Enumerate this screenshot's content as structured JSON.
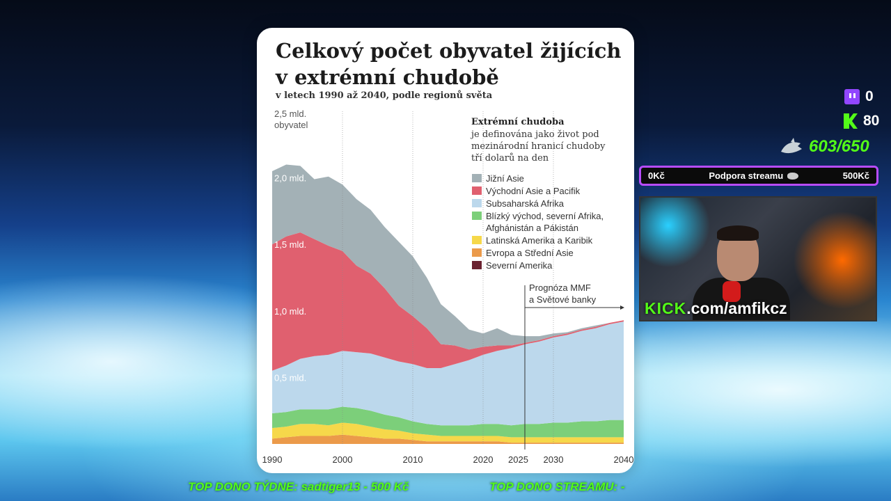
{
  "chart": {
    "title": "Celkový počet obyvatel žijících\nv extrémní chudobě",
    "subtitle": "v letech 1990 až 2040, podle regionů světa",
    "y_unit_line1": "2,5 mld.",
    "y_unit_line2": "obyvatel",
    "y_labels": [
      "2,0 mld.",
      "1,5 mld.",
      "1,0 mld.",
      "0,5 mld."
    ],
    "definition_title": "Extrémní chudoba",
    "definition_lines": [
      "je definována jako život pod",
      "mezinárodní hranicí chudoby",
      "tří dolarů na den"
    ],
    "forecast_line1": "Prognóza MMF",
    "forecast_line2": "a Světové banky",
    "legend": [
      {
        "label": "Jižní Asie",
        "label2": "",
        "color": "#a3b1b6"
      },
      {
        "label": "Východní Asie a Pacifik",
        "label2": "",
        "color": "#e0606f"
      },
      {
        "label": "Subsaharská Afrika",
        "label2": "",
        "color": "#bcd8ec"
      },
      {
        "label": "Blízký východ, severní Afrika,",
        "label2": "Afghánistán a Pákistán",
        "color": "#7ccf7a"
      },
      {
        "label": "Latinská Amerika a Karibik",
        "label2": "",
        "color": "#f6d84a"
      },
      {
        "label": "Evropa a Střední Asie",
        "label2": "",
        "color": "#eb9a4a"
      },
      {
        "label": "Severní Amerika",
        "label2": "",
        "color": "#6a2230"
      }
    ]
  },
  "chart_data": {
    "type": "area",
    "title": "Celkový počet obyvatel žijících v extrémní chudobě",
    "subtitle": "v letech 1990 až 2040, podle regionů světa",
    "ylabel": "2,5 mld. obyvatel",
    "x_ticks": [
      "1990",
      "2000",
      "2010",
      "2020",
      "2025",
      "2030",
      "2040"
    ],
    "ylim": [
      0,
      2.5
    ],
    "forecast_from": 2025,
    "x": [
      1990,
      1992,
      1994,
      1996,
      1998,
      2000,
      2002,
      2004,
      2006,
      2008,
      2010,
      2012,
      2014,
      2016,
      2018,
      2020,
      2022,
      2024,
      2026,
      2028,
      2030,
      2032,
      2034,
      2036,
      2038,
      2040
    ],
    "series": [
      {
        "name": "Evropa a Střední Asie",
        "color": "#eb9a4a",
        "values": [
          0.04,
          0.05,
          0.06,
          0.06,
          0.06,
          0.07,
          0.06,
          0.05,
          0.04,
          0.04,
          0.03,
          0.02,
          0.02,
          0.02,
          0.02,
          0.02,
          0.02,
          0.01,
          0.01,
          0.01,
          0.01,
          0.01,
          0.01,
          0.01,
          0.01,
          0.01
        ]
      },
      {
        "name": "Latinská Amerika a Karibik",
        "color": "#f6d84a",
        "values": [
          0.08,
          0.08,
          0.09,
          0.09,
          0.08,
          0.09,
          0.09,
          0.08,
          0.07,
          0.06,
          0.05,
          0.05,
          0.04,
          0.04,
          0.04,
          0.04,
          0.04,
          0.04,
          0.04,
          0.04,
          0.04,
          0.04,
          0.04,
          0.04,
          0.04,
          0.04
        ]
      },
      {
        "name": "Blízký východ, severní Afrika, Afghánistán a Pákistán",
        "color": "#7ccf7a",
        "values": [
          0.11,
          0.11,
          0.11,
          0.11,
          0.12,
          0.12,
          0.12,
          0.12,
          0.11,
          0.1,
          0.09,
          0.08,
          0.08,
          0.08,
          0.08,
          0.09,
          0.09,
          0.09,
          0.1,
          0.1,
          0.11,
          0.11,
          0.12,
          0.12,
          0.13,
          0.13
        ]
      },
      {
        "name": "Severní Amerika",
        "color": "#6a2230",
        "values": [
          0.0,
          0.0,
          0.0,
          0.0,
          0.0,
          0.0,
          0.0,
          0.0,
          0.0,
          0.0,
          0.0,
          0.0,
          0.0,
          0.0,
          0.0,
          0.0,
          0.0,
          0.0,
          0.0,
          0.0,
          0.0,
          0.0,
          0.0,
          0.0,
          0.0,
          0.0
        ]
      },
      {
        "name": "Subsaharská Afrika",
        "color": "#bcd8ec",
        "values": [
          0.32,
          0.35,
          0.38,
          0.4,
          0.41,
          0.42,
          0.42,
          0.43,
          0.43,
          0.42,
          0.43,
          0.42,
          0.43,
          0.46,
          0.49,
          0.52,
          0.55,
          0.58,
          0.6,
          0.62,
          0.64,
          0.66,
          0.68,
          0.7,
          0.72,
          0.74
        ]
      },
      {
        "name": "Východní Asie a Pacifik",
        "color": "#e0606f",
        "values": [
          0.95,
          0.97,
          0.95,
          0.88,
          0.82,
          0.75,
          0.65,
          0.6,
          0.52,
          0.42,
          0.36,
          0.3,
          0.18,
          0.14,
          0.08,
          0.06,
          0.04,
          0.02,
          0.01,
          0.01,
          0.01,
          0.01,
          0.01,
          0.01,
          0.01,
          0.01
        ]
      },
      {
        "name": "Jižní Asie",
        "color": "#a3b1b6",
        "values": [
          0.55,
          0.54,
          0.5,
          0.45,
          0.52,
          0.5,
          0.5,
          0.48,
          0.46,
          0.48,
          0.45,
          0.38,
          0.3,
          0.22,
          0.15,
          0.1,
          0.13,
          0.08,
          0.05,
          0.03,
          0.02,
          0.01,
          0.01,
          0.01,
          0.0,
          0.0
        ]
      }
    ]
  },
  "overlay": {
    "twitch_count": "0",
    "kick_count": "80",
    "goal": "603/650",
    "support_left": "0Kč",
    "support_title": "Podpora streamu",
    "support_right": "500Kč",
    "kick_word": "KICK",
    "kick_url": ".com/amfikcz",
    "ticker_left": "TOP DONO TÝDNE:  sadtiger13 - 500 Kč",
    "ticker_right": "TOP DONO STREAMU: -"
  }
}
